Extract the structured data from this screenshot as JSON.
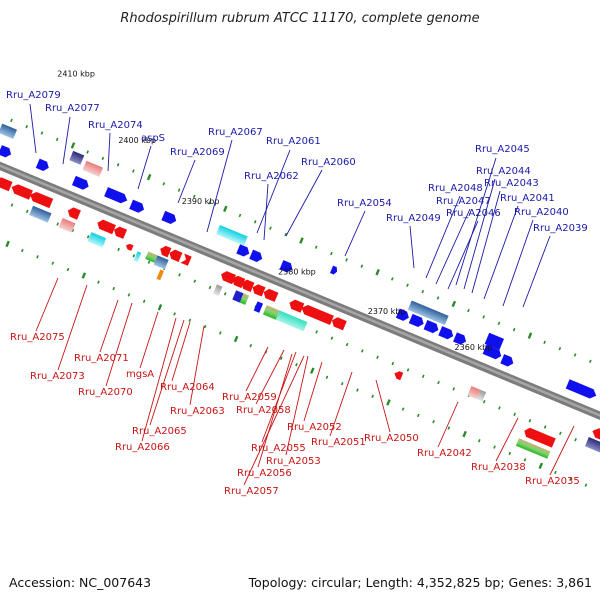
{
  "title": "Rhodospirillum rubrum ATCC 11170, complete genome",
  "footer": {
    "accession": "Accession: NC_007643",
    "summary": "Topology: circular; Length: 4,352,825 bp; Genes: 3,861"
  },
  "colors": {
    "forward_gene": "#1010ee",
    "reverse_gene": "#ee1010",
    "backbone": "#7a7a7a",
    "tick": "#2a8a2a"
  },
  "scale_labels": [
    "2410 kbp",
    "2400 kbp",
    "2390 kbp",
    "2380 kbp",
    "2370 kbp",
    "2360 kbp"
  ],
  "top_labels": [
    "Rru_A2079",
    "Rru_A2077",
    "Rru_A2074",
    "aspS",
    "Rru_A2069",
    "Rru_A2067",
    "Rru_A2061",
    "Rru_A2062",
    "Rru_A2060",
    "Rru_A2054",
    "Rru_A2049",
    "Rru_A2048",
    "Rru_A2047",
    "Rru_A2046",
    "Rru_A2045",
    "Rru_A2044",
    "Rru_A2043",
    "Rru_A2041",
    "Rru_A2040",
    "Rru_A2039"
  ],
  "bottom_labels": [
    "Rru_A2075",
    "Rru_A2073",
    "Rru_A2071",
    "Rru_A2070",
    "mgsA",
    "Rru_A2064",
    "Rru_A2063",
    "Rru_A2065",
    "Rru_A2066",
    "Rru_A2059",
    "Rru_A2058",
    "Rru_A2055",
    "Rru_A2056",
    "Rru_A2057",
    "Rru_A2053",
    "Rru_A2052",
    "Rru_A2051",
    "Rru_A2050",
    "Rru_A2042",
    "Rru_A2038",
    "Rru_A2035"
  ]
}
